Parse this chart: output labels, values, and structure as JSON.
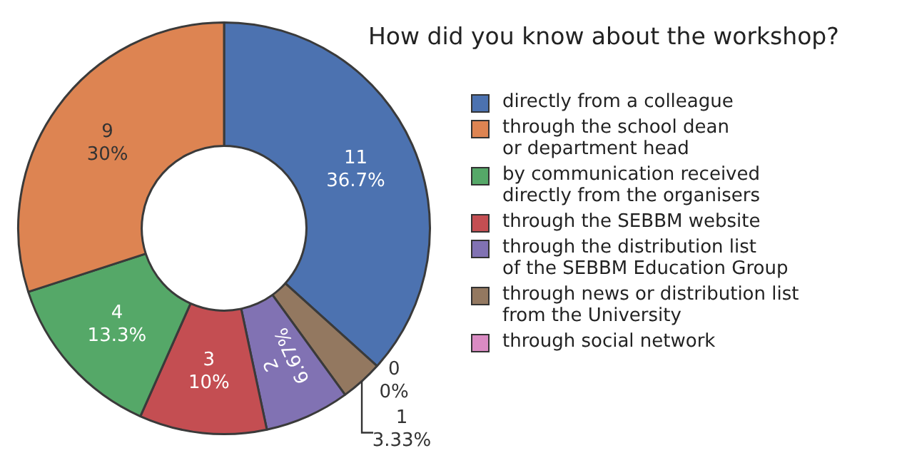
{
  "chart_data": {
    "type": "donut",
    "title": "How did you know about the workshop?",
    "categories": [
      "directly from a colleague",
      "through the school dean\nor department head",
      "by communication received\ndirectly from the organisers",
      "through the SEBBM website",
      "through the distribution list\nof the SEBBM Education Group",
      "through news or distribution list\nfrom the University",
      "through social network"
    ],
    "values": [
      11,
      9,
      4,
      3,
      2,
      1,
      0
    ],
    "colors": [
      "#4c72b0",
      "#dd8452",
      "#55a868",
      "#c44e52",
      "#8172b3",
      "#937860",
      "#da8bc3"
    ],
    "value_labels": [
      "11\n36.7%",
      "9\n30%",
      "4\n13.3%",
      "3\n10%",
      "2\n6.67%",
      "1\n3.33%",
      "0\n0%"
    ],
    "legend": "right"
  }
}
